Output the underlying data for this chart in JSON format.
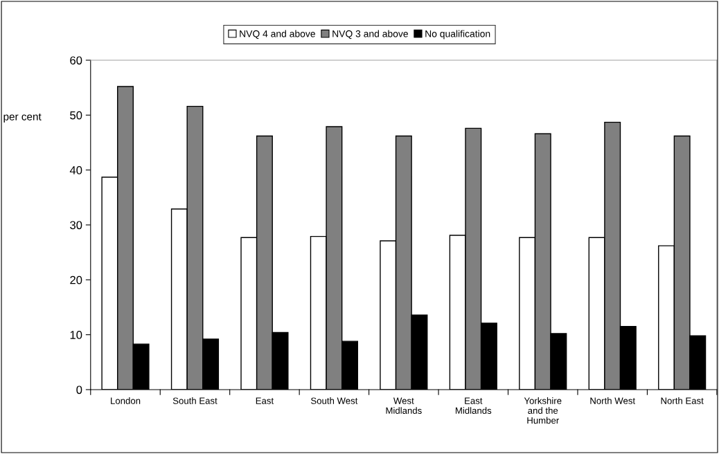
{
  "chart_data": {
    "type": "bar",
    "ylabel": "per cent",
    "categories": [
      "London",
      "South East",
      "East",
      "South West",
      "West Midlands",
      "East Midlands",
      "Yorkshire and the Humber",
      "North West",
      "North East"
    ],
    "series": [
      {
        "name": "NVQ 4 and above",
        "color": "#ffffff",
        "values": [
          38.7,
          32.9,
          27.7,
          27.9,
          27.1,
          28.1,
          27.7,
          27.7,
          26.2
        ]
      },
      {
        "name": "NVQ 3 and above",
        "color": "#808080",
        "values": [
          55.2,
          51.6,
          46.2,
          47.9,
          46.2,
          47.6,
          46.6,
          48.7,
          46.2
        ]
      },
      {
        "name": "No qualification",
        "color": "#000000",
        "values": [
          8.3,
          9.2,
          10.4,
          8.8,
          13.6,
          12.1,
          10.2,
          11.5,
          9.8
        ]
      }
    ],
    "ylim": [
      0,
      60
    ],
    "yticks": [
      0,
      10,
      20,
      30,
      40,
      50,
      60
    ],
    "grid": false,
    "legend": "top"
  }
}
